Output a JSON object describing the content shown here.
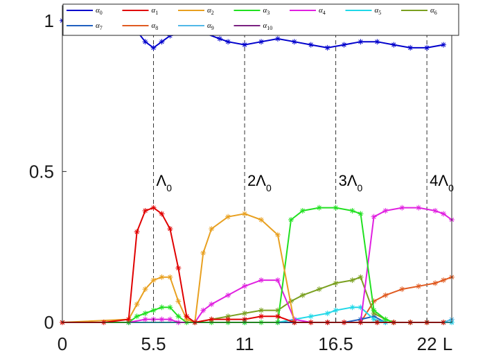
{
  "chart_data": {
    "type": "line",
    "title": "",
    "xlabel": "L",
    "ylabel": "",
    "xlim": [
      0,
      23.5
    ],
    "ylim": [
      0,
      1.05
    ],
    "xticks": [
      0,
      5.5,
      11,
      16.5,
      22
    ],
    "xtick_labels": [
      "0",
      "5.5",
      "11",
      "16.5",
      "22"
    ],
    "yticks": [
      0,
      0.5,
      1
    ],
    "ytick_labels": [
      "0",
      "0.5",
      "1"
    ],
    "marker": "asterisk",
    "vlines": [
      {
        "x": 5.5,
        "label": "Λ",
        "sub": "0"
      },
      {
        "x": 11,
        "label": "2Λ",
        "sub": "0"
      },
      {
        "x": 16.5,
        "label": "3Λ",
        "sub": "0"
      },
      {
        "x": 22,
        "label": "4Λ",
        "sub": "0"
      }
    ],
    "series": [
      {
        "name": "α",
        "sub": "0",
        "color": "#0000cc",
        "points": [
          [
            0,
            1.0
          ],
          [
            2.5,
            1.0
          ],
          [
            4,
            1.0
          ],
          [
            5,
            0.93
          ],
          [
            5.5,
            0.91
          ],
          [
            6,
            0.93
          ],
          [
            6.5,
            0.95
          ],
          [
            7,
            0.99
          ],
          [
            7.5,
            1.0
          ],
          [
            8,
            0.99
          ],
          [
            8.5,
            0.96
          ],
          [
            9.5,
            0.94
          ],
          [
            10,
            0.93
          ],
          [
            11,
            0.92
          ],
          [
            12,
            0.93
          ],
          [
            13,
            0.94
          ],
          [
            14,
            0.93
          ],
          [
            15,
            0.92
          ],
          [
            16,
            0.91
          ],
          [
            17,
            0.92
          ],
          [
            18,
            0.93
          ],
          [
            19,
            0.93
          ],
          [
            20,
            0.92
          ],
          [
            21,
            0.91
          ],
          [
            22,
            0.91
          ],
          [
            23,
            0.92
          ]
        ]
      },
      {
        "name": "α",
        "sub": "1",
        "color": "#e00000",
        "points": [
          [
            0,
            0
          ],
          [
            2.5,
            0
          ],
          [
            4,
            0.01
          ],
          [
            4.5,
            0.3
          ],
          [
            5,
            0.37
          ],
          [
            5.5,
            0.38
          ],
          [
            6,
            0.36
          ],
          [
            6.5,
            0.31
          ],
          [
            7,
            0.18
          ],
          [
            7.5,
            0.02
          ],
          [
            8,
            0
          ],
          [
            9,
            0.01
          ],
          [
            10,
            0.01
          ],
          [
            11,
            0.01
          ],
          [
            12,
            0.02
          ],
          [
            13,
            0.02
          ],
          [
            14,
            0
          ],
          [
            15,
            0
          ],
          [
            16,
            0
          ],
          [
            17,
            0
          ],
          [
            18,
            0
          ],
          [
            19,
            0
          ],
          [
            20,
            0
          ],
          [
            21,
            0
          ],
          [
            22,
            0
          ],
          [
            23,
            0
          ]
        ]
      },
      {
        "name": "α",
        "sub": "2",
        "color": "#e8a020",
        "points": [
          [
            0,
            0
          ],
          [
            4,
            0.01
          ],
          [
            4.5,
            0.06
          ],
          [
            5,
            0.11
          ],
          [
            5.5,
            0.14
          ],
          [
            6,
            0.15
          ],
          [
            6.5,
            0.15
          ],
          [
            7,
            0.07
          ],
          [
            7.5,
            0.01
          ],
          [
            8,
            0
          ],
          [
            8.5,
            0.23
          ],
          [
            9,
            0.31
          ],
          [
            10,
            0.35
          ],
          [
            11,
            0.36
          ],
          [
            12,
            0.34
          ],
          [
            13,
            0.29
          ],
          [
            14,
            0
          ],
          [
            15,
            0
          ],
          [
            16,
            0
          ],
          [
            17,
            0
          ],
          [
            18,
            0
          ],
          [
            19,
            0
          ],
          [
            20,
            0
          ],
          [
            21,
            0
          ],
          [
            22,
            0
          ],
          [
            23,
            0
          ]
        ]
      },
      {
        "name": "α",
        "sub": "3",
        "color": "#20e020",
        "points": [
          [
            0,
            0
          ],
          [
            4,
            0
          ],
          [
            4.5,
            0.02
          ],
          [
            5,
            0.03
          ],
          [
            5.5,
            0.04
          ],
          [
            6,
            0.05
          ],
          [
            6.5,
            0.05
          ],
          [
            7,
            0.02
          ],
          [
            7.5,
            0
          ],
          [
            8,
            0
          ],
          [
            9,
            0
          ],
          [
            10,
            0
          ],
          [
            11,
            0
          ],
          [
            12,
            0
          ],
          [
            13,
            0
          ],
          [
            13.8,
            0.34
          ],
          [
            14.5,
            0.37
          ],
          [
            15.5,
            0.38
          ],
          [
            16.5,
            0.38
          ],
          [
            17.5,
            0.37
          ],
          [
            18,
            0.36
          ],
          [
            18.8,
            0.04
          ],
          [
            19.5,
            0.01
          ],
          [
            20,
            0
          ],
          [
            21,
            0
          ],
          [
            22,
            0
          ],
          [
            23,
            0
          ]
        ]
      },
      {
        "name": "α",
        "sub": "4",
        "color": "#e020e0",
        "points": [
          [
            0,
            0
          ],
          [
            4,
            0
          ],
          [
            5,
            0.01
          ],
          [
            5.5,
            0.01
          ],
          [
            6,
            0.01
          ],
          [
            6.5,
            0.01
          ],
          [
            7,
            0
          ],
          [
            8,
            0
          ],
          [
            8.5,
            0.04
          ],
          [
            9,
            0.06
          ],
          [
            10,
            0.09
          ],
          [
            11,
            0.12
          ],
          [
            12,
            0.14
          ],
          [
            13,
            0.14
          ],
          [
            14,
            0.01
          ],
          [
            15,
            0
          ],
          [
            16,
            0
          ],
          [
            17,
            0
          ],
          [
            18,
            0
          ],
          [
            18.8,
            0.35
          ],
          [
            19.5,
            0.37
          ],
          [
            20.5,
            0.38
          ],
          [
            21.5,
            0.38
          ],
          [
            22.5,
            0.37
          ],
          [
            23,
            0.36
          ],
          [
            23.5,
            0.34
          ]
        ]
      },
      {
        "name": "α",
        "sub": "5",
        "color": "#20d8e8",
        "points": [
          [
            0,
            0
          ],
          [
            4,
            0
          ],
          [
            8,
            0
          ],
          [
            11,
            0
          ],
          [
            13,
            0
          ],
          [
            14,
            0.01
          ],
          [
            15,
            0.02
          ],
          [
            16,
            0.03
          ],
          [
            16.5,
            0.04
          ],
          [
            17.5,
            0.05
          ],
          [
            18,
            0.05
          ],
          [
            18.8,
            0.01
          ],
          [
            19.5,
            0
          ],
          [
            20,
            0
          ],
          [
            21,
            0
          ],
          [
            22,
            0
          ],
          [
            23,
            0
          ],
          [
            23.5,
            0
          ]
        ]
      },
      {
        "name": "α",
        "sub": "6",
        "color": "#7aa020",
        "points": [
          [
            0,
            0
          ],
          [
            4,
            0
          ],
          [
            8,
            0
          ],
          [
            9,
            0.01
          ],
          [
            10,
            0.02
          ],
          [
            11,
            0.03
          ],
          [
            12,
            0.04
          ],
          [
            13,
            0.04
          ],
          [
            13.8,
            0.07
          ],
          [
            14.5,
            0.09
          ],
          [
            15.5,
            0.11
          ],
          [
            16.5,
            0.13
          ],
          [
            17.5,
            0.14
          ],
          [
            18,
            0.15
          ],
          [
            18.8,
            0.03
          ],
          [
            19.5,
            0.01
          ],
          [
            20,
            0
          ],
          [
            21,
            0
          ],
          [
            22,
            0
          ],
          [
            23,
            0
          ]
        ]
      },
      {
        "name": "α",
        "sub": "7",
        "color": "#1f5fc0",
        "points": [
          [
            0,
            0
          ],
          [
            4,
            0
          ],
          [
            8,
            0
          ],
          [
            11,
            0
          ],
          [
            13,
            0
          ],
          [
            14,
            0
          ],
          [
            16,
            0
          ],
          [
            17,
            0
          ],
          [
            18,
            0.01
          ],
          [
            18.8,
            0.02
          ],
          [
            19.5,
            0
          ],
          [
            20,
            0
          ],
          [
            21,
            0
          ],
          [
            22,
            0
          ],
          [
            23,
            0
          ],
          [
            23.5,
            0
          ]
        ]
      },
      {
        "name": "α",
        "sub": "8",
        "color": "#e05a20",
        "points": [
          [
            0,
            0
          ],
          [
            4,
            0
          ],
          [
            8,
            0
          ],
          [
            11,
            0
          ],
          [
            13,
            0
          ],
          [
            14,
            0
          ],
          [
            16,
            0
          ],
          [
            17,
            0
          ],
          [
            18,
            0
          ],
          [
            18.8,
            0.07
          ],
          [
            19.5,
            0.09
          ],
          [
            20.5,
            0.11
          ],
          [
            21.5,
            0.12
          ],
          [
            22.5,
            0.13
          ],
          [
            23,
            0.14
          ],
          [
            23.5,
            0.15
          ]
        ]
      },
      {
        "name": "α",
        "sub": "9",
        "color": "#50b8e8",
        "points": [
          [
            0,
            0
          ],
          [
            4,
            0
          ],
          [
            8,
            0
          ],
          [
            11,
            0
          ],
          [
            14,
            0
          ],
          [
            16,
            0
          ],
          [
            18,
            0
          ],
          [
            19,
            0
          ],
          [
            20,
            0
          ],
          [
            21,
            0
          ],
          [
            22,
            0
          ],
          [
            23,
            0
          ],
          [
            23.5,
            0.01
          ]
        ]
      },
      {
        "name": "α",
        "sub": "10",
        "color": "#7a2080",
        "points": [
          [
            0,
            0
          ],
          [
            4,
            0
          ],
          [
            8,
            0
          ],
          [
            11,
            0
          ],
          [
            14,
            0
          ],
          [
            16,
            0
          ],
          [
            18,
            0
          ],
          [
            19,
            0
          ],
          [
            20,
            0
          ],
          [
            21,
            0
          ],
          [
            22,
            0
          ],
          [
            23,
            0
          ],
          [
            23.5,
            0
          ]
        ]
      }
    ]
  }
}
